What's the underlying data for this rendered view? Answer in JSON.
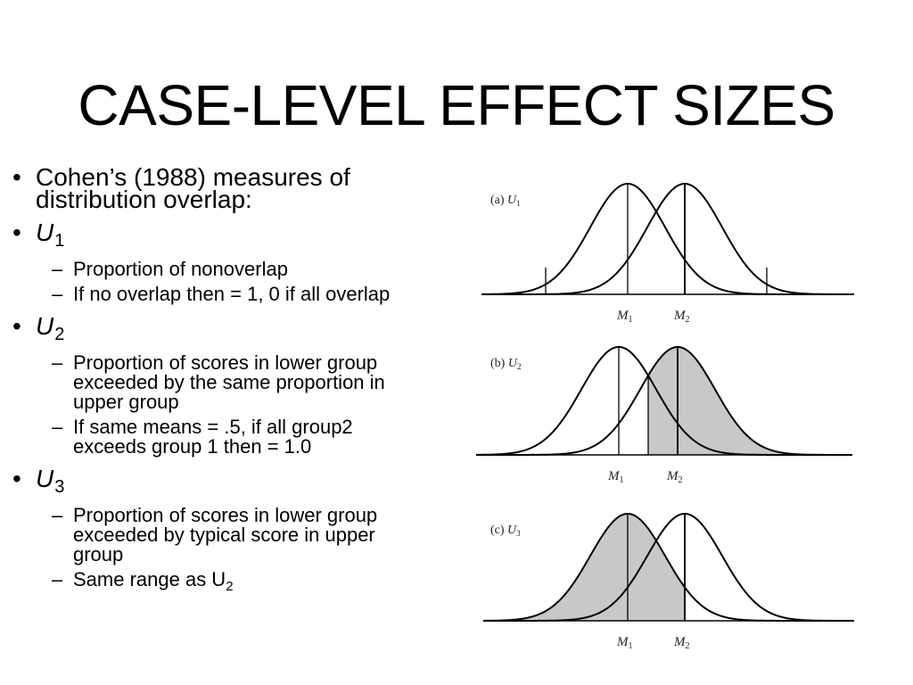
{
  "slide": {
    "title": "CASE-LEVEL EFFECT SIZES",
    "intro": "Cohen’s (1988) measures of distribution overlap:",
    "bullet_mark": "•",
    "dash_mark": "–",
    "u1": {
      "letter": "U",
      "subscript": "1",
      "points": [
        "Proportion of nonoverlap",
        "If no overlap then = 1, 0 if all overlap"
      ]
    },
    "u2": {
      "letter": "U",
      "subscript": "2",
      "points": [
        "Proportion of scores in lower group exceeded by the same proportion in upper group",
        "If same means = .5, if all group2 exceeds group 1 then = 1.0"
      ]
    },
    "u3": {
      "letter": "U",
      "subscript": "3",
      "points": [
        "Proportion of scores in lower group exceeded by typical score in upper group"
      ],
      "last_point_text": "Same range as U",
      "last_point_subscript": "2"
    }
  },
  "figure": {
    "panels": [
      {
        "tag": "(a)",
        "label": "U",
        "label_sub": "1",
        "m1": "M",
        "m1_sub": "1",
        "m2": "M",
        "m2_sub": "2"
      },
      {
        "tag": "(b)",
        "label": "U",
        "label_sub": "2",
        "m1": "M",
        "m1_sub": "1",
        "m2": "M",
        "m2_sub": "2"
      },
      {
        "tag": "(c)",
        "label": "U",
        "label_sub": "3",
        "m1": "M",
        "m1_sub": "1",
        "m2": "M",
        "m2_sub": "2"
      }
    ],
    "colors": {
      "curve": "#000000",
      "shade": "#c8c8c8",
      "label": "#222222"
    }
  }
}
